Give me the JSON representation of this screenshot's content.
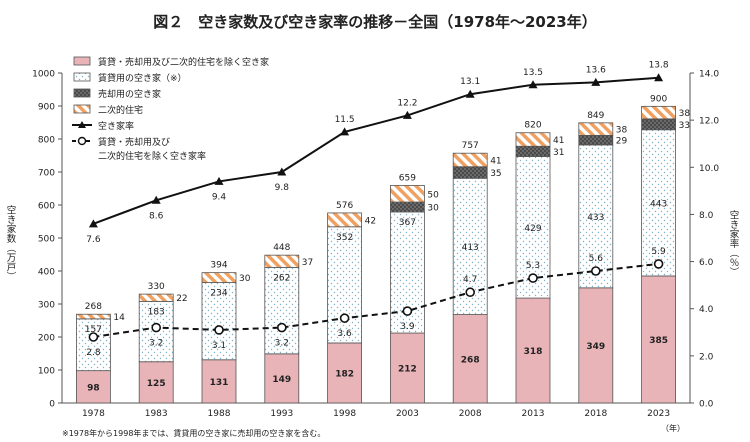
{
  "chart_data": {
    "type": "bar",
    "title": "図２　空き家数及び空き家率の推移－全国（1978年～2023年）",
    "xlabel": "（年）",
    "ylabel_left": "空き家数（万戸）",
    "ylabel_right": "空き家率（％）",
    "ylim_left": [
      0,
      1000
    ],
    "ylim_right": [
      0,
      14
    ],
    "yticks_left": [
      "0",
      "100",
      "200",
      "300",
      "400",
      "500",
      "600",
      "700",
      "800",
      "900",
      "1000"
    ],
    "yticks_right": [
      "0.0",
      "2.0",
      "4.0",
      "6.0",
      "8.0",
      "10.0",
      "12.0",
      "14.0"
    ],
    "categories": [
      "1978",
      "1983",
      "1988",
      "1993",
      "1998",
      "2003",
      "2008",
      "2013",
      "2018",
      "2023"
    ],
    "stacked_series": [
      {
        "name": "賃貸・売却用及び二次的住宅を除く空き家",
        "color": "#e8b4b8",
        "values": [
          98,
          125,
          131,
          149,
          182,
          212,
          268,
          318,
          349,
          385
        ],
        "labels": [
          "98",
          "125",
          "131",
          "149",
          "182",
          "212",
          "268",
          "318",
          "349",
          "385"
        ]
      },
      {
        "name": "賃貸用の空き家（※）",
        "color": "#ffffff",
        "values": [
          157,
          183,
          234,
          262,
          352,
          367,
          413,
          429,
          433,
          443
        ],
        "labels": [
          "157",
          "183",
          "234",
          "262",
          "352",
          "367",
          "413",
          "429",
          "433",
          "443"
        ]
      },
      {
        "name": "売却用の空き家",
        "color": "#555555",
        "values": [
          0,
          0,
          0,
          0,
          0,
          30,
          35,
          31,
          29,
          33
        ],
        "labels": [
          "",
          "",
          "",
          "",
          "",
          "30",
          "35",
          "31",
          "29",
          "33"
        ]
      },
      {
        "name": "二次的住宅",
        "color": "#f0a060",
        "values": [
          14,
          22,
          30,
          37,
          42,
          50,
          41,
          41,
          38,
          38
        ],
        "labels": [
          "14",
          "22",
          "30",
          "37",
          "42",
          "50",
          "41",
          "41",
          "38",
          "38"
        ]
      }
    ],
    "totals": [
      "268",
      "330",
      "394",
      "448",
      "576",
      "659",
      "757",
      "820",
      "849",
      "900"
    ],
    "line_series": [
      {
        "name": "空き家率",
        "style": "solid",
        "values": [
          7.6,
          8.6,
          9.4,
          9.8,
          11.5,
          12.2,
          13.1,
          13.5,
          13.6,
          13.8
        ],
        "labels": [
          "7.6",
          "8.6",
          "9.4",
          "9.8",
          "11.5",
          "12.2",
          "13.1",
          "13.5",
          "13.6",
          "13.8"
        ]
      },
      {
        "name": "賃貸・売却用及び二次的住宅を除く空き家率",
        "style": "dashed",
        "values": [
          2.8,
          3.2,
          3.1,
          3.2,
          3.6,
          3.9,
          4.7,
          5.3,
          5.6,
          5.9
        ],
        "labels": [
          "2.8",
          "3.2",
          "3.1",
          "3.2",
          "3.6",
          "3.9",
          "4.7",
          "5.3",
          "5.6",
          "5.9"
        ]
      }
    ],
    "legend": {
      "items": [
        "賃貸・売却用及び二次的住宅を除く空き家",
        "賃貸用の空き家（※）",
        "売却用の空き家",
        "二次的住宅",
        "空き家率",
        "賃貸・売却用及び",
        "二次的住宅を除く空き家率"
      ]
    },
    "footnote": "※1978年から1998年までは、賃貸用の空き家に売却用の空き家を含む。",
    "grid": false,
    "legend_position": "top-left"
  }
}
